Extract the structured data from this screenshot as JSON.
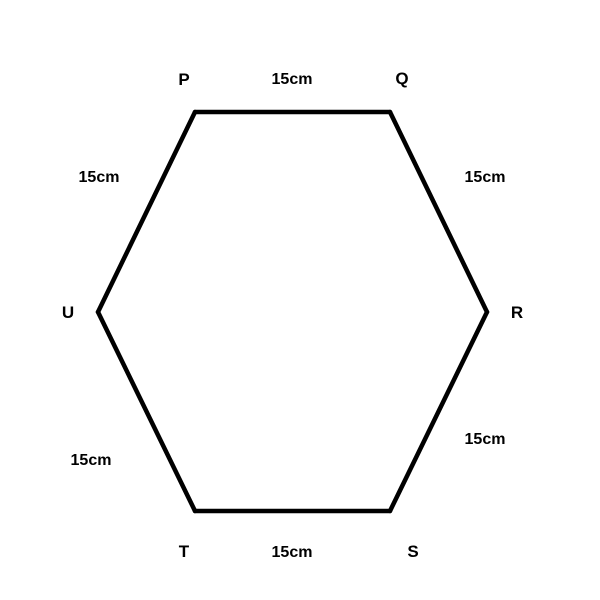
{
  "hexagon": {
    "vertices": {
      "P": "P",
      "Q": "Q",
      "R": "R",
      "S": "S",
      "T": "T",
      "U": "U"
    },
    "sides": {
      "PQ": "15cm",
      "QR": "15cm",
      "RS": "15cm",
      "ST": "15cm",
      "TU": "15cm",
      "UP": "15cm"
    },
    "stroke_color": "#000000",
    "background_color": "#ffffff"
  }
}
